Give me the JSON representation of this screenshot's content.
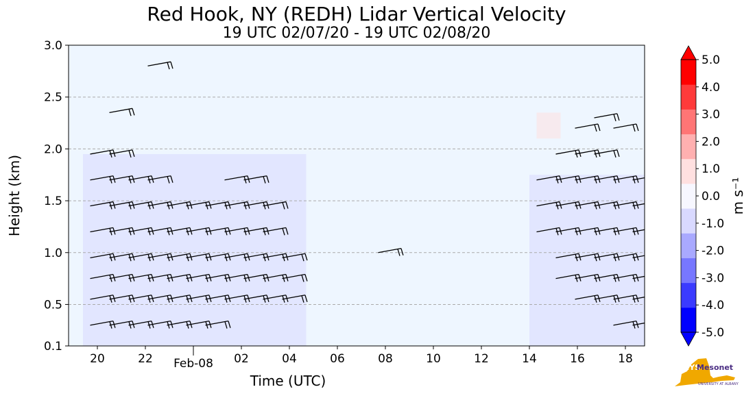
{
  "chart_data": {
    "type": "heatmap",
    "title": "Red Hook, NY (REDH) Lidar Vertical Velocity",
    "subtitle": "19 UTC 02/07/20 - 19 UTC 02/08/20",
    "xlabel": "Time (UTC)",
    "ylabel": "Height (km)",
    "x_ticks": [
      "20",
      "22",
      "02",
      "04",
      "06",
      "08",
      "10",
      "12",
      "14",
      "16",
      "18"
    ],
    "x_tick_hours": [
      1,
      3,
      7,
      9,
      11,
      13,
      15,
      17,
      19,
      21,
      23
    ],
    "x_date_tick": {
      "label": "Feb-08",
      "hour": 5
    },
    "xlim_hours": [
      -0.2,
      23.8
    ],
    "y_ticks": [
      "0.1",
      "0.5",
      "1.0",
      "1.5",
      "2.0",
      "2.5",
      "3.0"
    ],
    "y_tick_values": [
      0.1,
      0.5,
      1.0,
      1.5,
      2.0,
      2.5,
      3.0
    ],
    "ylim": [
      0.1,
      3.0
    ],
    "grid": "horizontal dashed",
    "colorbar": {
      "label": "m s⁻¹",
      "ticks": [
        "-5.0",
        "-4.0",
        "-3.0",
        "-2.0",
        "-1.0",
        "0.0",
        "1.0",
        "2.0",
        "3.0",
        "4.0",
        "5.0"
      ],
      "range": [
        -5.0,
        5.0
      ],
      "colors": [
        "#0000ff",
        "#3b3bff",
        "#7777ff",
        "#a9a9ff",
        "#d9d9ff",
        "#f7f7ff",
        "#ffe0e0",
        "#ffb0b0",
        "#ff7575",
        "#ff3a3a",
        "#ff0000"
      ]
    },
    "background_color": "#eef6ff",
    "data_regions": [
      {
        "name": "evening",
        "t_start": 0.4,
        "t_end": 9.7,
        "z_bottom": 0.1,
        "z_top": 1.95,
        "value": -0.8
      },
      {
        "name": "next-day",
        "t_start": 19.0,
        "t_end": 23.8,
        "z_bottom": 0.1,
        "z_top": 1.75,
        "value": -0.7
      },
      {
        "name": "upper-right-cloud",
        "t_start": 19.3,
        "t_end": 20.3,
        "z_bottom": 2.1,
        "z_top": 2.35,
        "value": 0.5
      }
    ],
    "wind_barb_columns": [
      {
        "t": 0.7,
        "heights": [
          0.3,
          0.55,
          0.75,
          0.95,
          1.2,
          1.45,
          1.7,
          1.95
        ]
      },
      {
        "t": 1.5,
        "heights": [
          0.3,
          0.55,
          0.75,
          0.95,
          1.2,
          1.45,
          1.7,
          1.95,
          2.35
        ]
      },
      {
        "t": 2.3,
        "heights": [
          0.3,
          0.55,
          0.75,
          0.95,
          1.2,
          1.45,
          1.7
        ]
      },
      {
        "t": 3.1,
        "heights": [
          0.3,
          0.55,
          0.75,
          0.95,
          1.2,
          1.45,
          1.7,
          2.8
        ]
      },
      {
        "t": 3.9,
        "heights": [
          0.3,
          0.55,
          0.75,
          0.95,
          1.2,
          1.45
        ]
      },
      {
        "t": 4.7,
        "heights": [
          0.3,
          0.55,
          0.75,
          0.95,
          1.2,
          1.45
        ]
      },
      {
        "t": 5.5,
        "heights": [
          0.3,
          0.55,
          0.75,
          0.95,
          1.2,
          1.45
        ]
      },
      {
        "t": 6.3,
        "heights": [
          0.55,
          0.75,
          0.95,
          1.2,
          1.45,
          1.7
        ]
      },
      {
        "t": 7.1,
        "heights": [
          0.55,
          0.75,
          0.95,
          1.2,
          1.45,
          1.7
        ]
      },
      {
        "t": 7.9,
        "heights": [
          0.55,
          0.75,
          0.95,
          1.2,
          1.45
        ]
      },
      {
        "t": 8.7,
        "heights": [
          0.55,
          0.75,
          0.95
        ]
      },
      {
        "t": 12.7,
        "heights": [
          1.0
        ]
      },
      {
        "t": 19.3,
        "heights": [
          1.2,
          1.45,
          1.7
        ]
      },
      {
        "t": 20.1,
        "heights": [
          0.75,
          0.95,
          1.2,
          1.45,
          1.7,
          1.95
        ]
      },
      {
        "t": 20.9,
        "heights": [
          0.55,
          0.75,
          0.95,
          1.2,
          1.45,
          1.7,
          1.95,
          2.2
        ]
      },
      {
        "t": 21.7,
        "heights": [
          0.55,
          0.75,
          0.95,
          1.2,
          1.45,
          1.7,
          1.95,
          2.3
        ]
      },
      {
        "t": 22.5,
        "heights": [
          0.3,
          0.55,
          0.75,
          0.95,
          1.2,
          1.45,
          1.7,
          2.2
        ]
      },
      {
        "t": 23.3,
        "heights": [
          0.3,
          0.55,
          0.75,
          0.95,
          1.2,
          1.45,
          1.7
        ]
      }
    ]
  },
  "logo": {
    "nys": "NYS",
    "name": "Mesonet",
    "sub": "UNIVERSITY AT ALBANY"
  }
}
